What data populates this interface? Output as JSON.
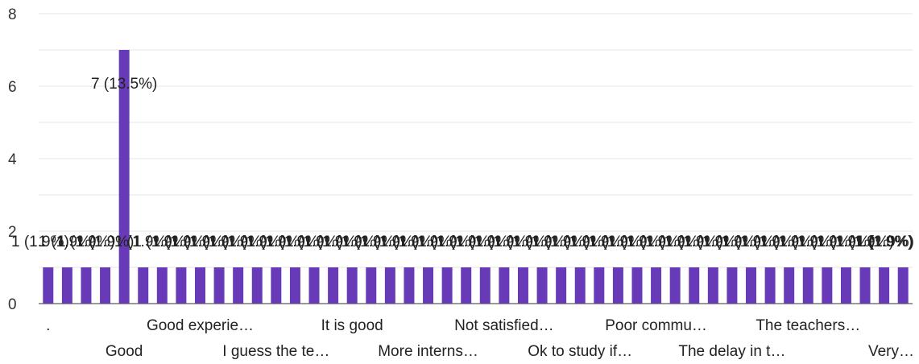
{
  "chart_data": {
    "type": "bar",
    "title": "",
    "xlabel": "",
    "ylabel": "",
    "ylim": [
      0,
      8
    ],
    "yticks": [
      0,
      2,
      4,
      6,
      8
    ],
    "grid": true,
    "color": "#673ab7",
    "values": [
      1,
      1,
      1,
      1,
      7,
      1,
      1,
      1,
      1,
      1,
      1,
      1,
      1,
      1,
      1,
      1,
      1,
      1,
      1,
      1,
      1,
      1,
      1,
      1,
      1,
      1,
      1,
      1,
      1,
      1,
      1,
      1,
      1,
      1,
      1,
      1,
      1,
      1,
      1,
      1,
      1,
      1,
      1,
      1,
      1,
      1
    ],
    "labels": [
      "1 (1.9%)",
      "1 (1.9%)",
      "1 (1.9%)",
      "1 (1.9%)",
      "7 (13.5%)",
      "1 (1.9%)",
      "1 (1.9%)",
      "1 (1.9%)",
      "1 (1.9%)",
      "1 (1.9%)",
      "1 (1.9%)",
      "1 (1.9%)",
      "1 (1.9%)",
      "1 (1.9%)",
      "1 (1.9%)",
      "1 (1.9%)",
      "1 (1.9%)",
      "1 (1.9%)",
      "1 (1.9%)",
      "1 (1.9%)",
      "1 (1.9%)",
      "1 (1.9%)",
      "1 (1.9%)",
      "1 (1.9%)",
      "1 (1.9%)",
      "1 (1.9%)",
      "1 (1.9%)",
      "1 (1.9%)",
      "1 (1.9%)",
      "1 (1.9%)",
      "1 (1.9%)",
      "1 (1.9%)",
      "1 (1.9%)",
      "1 (1.9%)",
      "1 (1.9%)",
      "1 (1.9%)",
      "1 (1.9%)",
      "1 (1.9%)",
      "1 (1.9%)",
      "1 (1.9%)",
      "1 (1.9%)",
      "1 (1.9%)",
      "1 (1.9%)",
      "1 (1.9%)",
      "1 (1.9%)",
      "1 (1.9%)"
    ],
    "x_tick_labels": [
      {
        "text": ".",
        "index": 0,
        "row": 0
      },
      {
        "text": "Good",
        "index": 4,
        "row": 1
      },
      {
        "text": "Good experie…",
        "index": 8,
        "row": 0
      },
      {
        "text": "I guess the te…",
        "index": 12,
        "row": 1
      },
      {
        "text": "It is good",
        "index": 16,
        "row": 0
      },
      {
        "text": "More interns…",
        "index": 20,
        "row": 1
      },
      {
        "text": "Not satisfied…",
        "index": 24,
        "row": 0
      },
      {
        "text": "Ok to study if…",
        "index": 28,
        "row": 1
      },
      {
        "text": "Poor commu…",
        "index": 32,
        "row": 0
      },
      {
        "text": "The delay in t…",
        "index": 36,
        "row": 1
      },
      {
        "text": "The teachers…",
        "index": 40,
        "row": 0
      },
      {
        "text": "Very…",
        "index": 44,
        "row": 1
      }
    ]
  }
}
